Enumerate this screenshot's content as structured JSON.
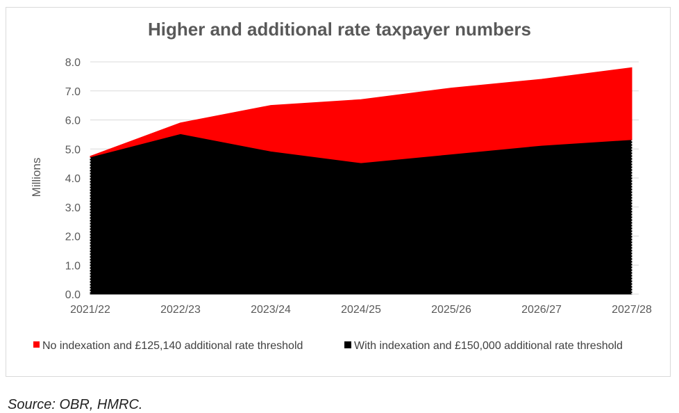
{
  "chart_data": {
    "type": "area",
    "title": "Higher and additional rate taxpayer numbers",
    "xlabel": "",
    "ylabel": "Millions",
    "categories": [
      "2021/22",
      "2022/23",
      "2023/24",
      "2024/25",
      "2025/26",
      "2026/27",
      "2027/28"
    ],
    "ylim": [
      0,
      8
    ],
    "yticks": [
      "0.0",
      "1.0",
      "2.0",
      "3.0",
      "4.0",
      "5.0",
      "6.0",
      "7.0",
      "8.0"
    ],
    "grid": true,
    "stacked": false,
    "series": [
      {
        "name": "No indexation and £125,140 additional rate threshold",
        "color": "#ff0000",
        "values": [
          4.75,
          5.9,
          6.5,
          6.7,
          7.1,
          7.4,
          7.8
        ]
      },
      {
        "name": "With indexation and £150,000 additional rate threshold",
        "color": "#000000",
        "values": [
          4.7,
          5.5,
          4.9,
          4.5,
          4.8,
          5.1,
          5.3
        ]
      }
    ],
    "legend_position": "bottom"
  },
  "source": "Source: OBR, HMRC."
}
